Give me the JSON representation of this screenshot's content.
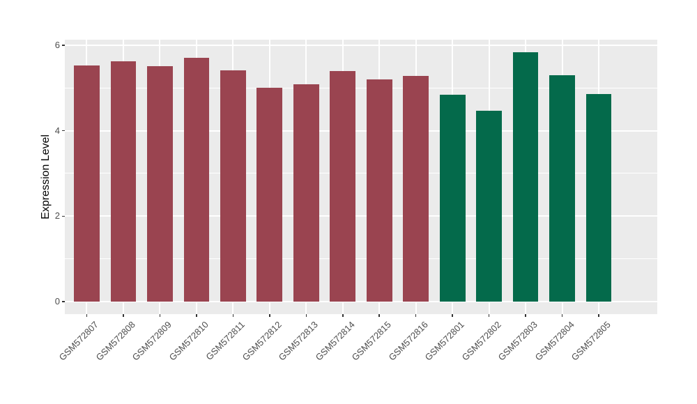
{
  "chart_data": {
    "type": "bar",
    "title": "",
    "xlabel": "",
    "ylabel": "Expression Level",
    "categories": [
      "GSM572807",
      "GSM572808",
      "GSM572809",
      "GSM572810",
      "GSM572811",
      "GSM572812",
      "GSM572813",
      "GSM572814",
      "GSM572815",
      "GSM572816",
      "GSM572801",
      "GSM572802",
      "GSM572803",
      "GSM572804",
      "GSM572805"
    ],
    "values": [
      5.52,
      5.62,
      5.51,
      5.7,
      5.41,
      5.0,
      5.08,
      5.39,
      5.2,
      5.28,
      4.84,
      4.47,
      5.83,
      5.29,
      4.86
    ],
    "bar_colors": [
      "#9A4450",
      "#9A4450",
      "#9A4450",
      "#9A4450",
      "#9A4450",
      "#9A4450",
      "#9A4450",
      "#9A4450",
      "#9A4450",
      "#9A4450",
      "#046A4B",
      "#046A4B",
      "#046A4B",
      "#046A4B",
      "#046A4B"
    ],
    "group_colors": {
      "red_group": "#9A4450",
      "green_group": "#046A4B"
    },
    "y_ticks": [
      0,
      2,
      4,
      6
    ],
    "y_minor_gridlines": [
      1,
      3,
      5
    ],
    "ylim": [
      0,
      6.12
    ],
    "x_tick_label_angle": 45,
    "legend": "none",
    "grid": "white major and minor horizontal lines, white vertical lines at bar centers, on gray panel"
  },
  "style": {
    "panel_bg": "#EBEBEB",
    "grid_color": "#FFFFFF",
    "axis_text_color": "#4D4D4D",
    "axis_title_color": "#000000",
    "tick_mark_color": "#333333",
    "page_bg": "#FFFFFF"
  }
}
